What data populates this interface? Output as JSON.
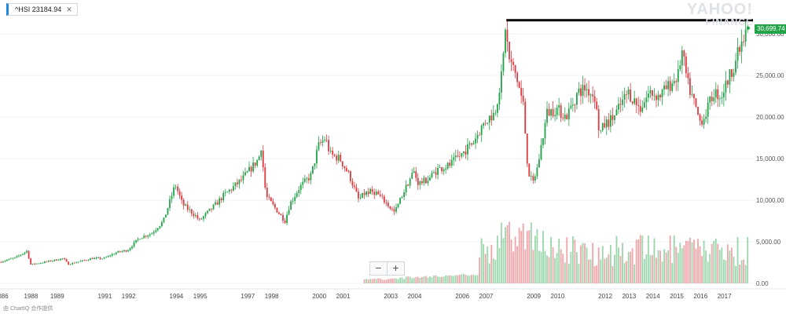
{
  "ticker": {
    "label": "^HSI 23184.94",
    "close_symbol": "✕",
    "accent": "#1e88e5"
  },
  "watermark": {
    "line1": "YAHOO!",
    "line2": "FINANCE"
  },
  "zoom": {
    "minus": "−",
    "plus": "+"
  },
  "footer": {
    "text": "由 ChartIQ 合作提供"
  },
  "current_price": {
    "label": "30,699.74",
    "color": "#22a348"
  },
  "colors": {
    "up": "#22a348",
    "down": "#e0383e",
    "resistance_line": "#000000",
    "grid": "#eef1f4"
  },
  "chart_data": {
    "type": "candlestick",
    "series_name": "^HSI",
    "x_range": [
      1986.6,
      2018.2
    ],
    "ylim": [
      0,
      32000
    ],
    "y_ticks": [
      0,
      5000,
      10000,
      15000,
      20000,
      25000,
      30000
    ],
    "y_tick_labels": [
      "0.00",
      "5,000.00",
      "10,000.00",
      "15,000.00",
      "20,000.00",
      "25,000.00",
      "30,000.00"
    ],
    "x_ticks": [
      {
        "year": 1986.6,
        "label": "l86"
      },
      {
        "year": 1987.9,
        "label": "1988"
      },
      {
        "year": 1989.0,
        "label": "1989"
      },
      {
        "year": 1991.0,
        "label": "1991"
      },
      {
        "year": 1992.0,
        "label": "1992"
      },
      {
        "year": 1994.0,
        "label": "1994"
      },
      {
        "year": 1995.0,
        "label": "1995"
      },
      {
        "year": 1997.0,
        "label": "1997"
      },
      {
        "year": 1998.0,
        "label": "1998"
      },
      {
        "year": 2000.0,
        "label": "2000"
      },
      {
        "year": 2001.0,
        "label": "2001"
      },
      {
        "year": 2003.0,
        "label": "2003"
      },
      {
        "year": 2004.0,
        "label": "2004"
      },
      {
        "year": 2006.0,
        "label": "2006"
      },
      {
        "year": 2007.0,
        "label": "2007"
      },
      {
        "year": 2009.0,
        "label": "2009"
      },
      {
        "year": 2010.0,
        "label": "2010"
      },
      {
        "year": 2012.0,
        "label": "2012"
      },
      {
        "year": 2013.0,
        "label": "2013"
      },
      {
        "year": 2014.0,
        "label": "2014"
      },
      {
        "year": 2015.0,
        "label": "2015"
      },
      {
        "year": 2016.0,
        "label": "2016"
      },
      {
        "year": 2017.0,
        "label": "2017"
      }
    ],
    "price_path": [
      [
        1986.6,
        2550
      ],
      [
        1987.3,
        3100
      ],
      [
        1987.8,
        3950
      ],
      [
        1987.9,
        2250
      ],
      [
        1988.5,
        2550
      ],
      [
        1989.3,
        3000
      ],
      [
        1989.5,
        2300
      ],
      [
        1990.5,
        3000
      ],
      [
        1991.0,
        3000
      ],
      [
        1991.5,
        3700
      ],
      [
        1992.0,
        4000
      ],
      [
        1992.5,
        5500
      ],
      [
        1993.0,
        6000
      ],
      [
        1993.5,
        7500
      ],
      [
        1994.0,
        11900
      ],
      [
        1994.3,
        9500
      ],
      [
        1994.9,
        8000
      ],
      [
        1995.0,
        7500
      ],
      [
        1995.7,
        9500
      ],
      [
        1996.0,
        10500
      ],
      [
        1996.8,
        12500
      ],
      [
        1997.5,
        15000
      ],
      [
        1997.6,
        16500
      ],
      [
        1997.8,
        10500
      ],
      [
        1998.2,
        9000
      ],
      [
        1998.6,
        7500
      ],
      [
        1998.8,
        9500
      ],
      [
        1999.2,
        11500
      ],
      [
        1999.7,
        13000
      ],
      [
        2000.0,
        16500
      ],
      [
        2000.3,
        17500
      ],
      [
        2000.5,
        15500
      ],
      [
        2000.9,
        15000
      ],
      [
        2001.3,
        13000
      ],
      [
        2001.7,
        10000
      ],
      [
        2002.0,
        11000
      ],
      [
        2002.4,
        11000
      ],
      [
        2002.9,
        9500
      ],
      [
        2003.2,
        8500
      ],
      [
        2003.5,
        10500
      ],
      [
        2003.8,
        12300
      ],
      [
        2004.0,
        13500
      ],
      [
        2004.2,
        12000
      ],
      [
        2004.6,
        12500
      ],
      [
        2005.0,
        13700
      ],
      [
        2005.5,
        14200
      ],
      [
        2006.0,
        15500
      ],
      [
        2006.5,
        17000
      ],
      [
        2007.0,
        19500
      ],
      [
        2007.4,
        20500
      ],
      [
        2007.7,
        25000
      ],
      [
        2007.8,
        28500
      ],
      [
        2007.85,
        31000
      ],
      [
        2008.0,
        27000
      ],
      [
        2008.3,
        25000
      ],
      [
        2008.6,
        21500
      ],
      [
        2008.8,
        13500
      ],
      [
        2009.0,
        12000
      ],
      [
        2009.2,
        14000
      ],
      [
        2009.6,
        20500
      ],
      [
        2010.0,
        21000
      ],
      [
        2010.4,
        20000
      ],
      [
        2010.9,
        23000
      ],
      [
        2011.2,
        23500
      ],
      [
        2011.6,
        22500
      ],
      [
        2011.8,
        18000
      ],
      [
        2012.0,
        19000
      ],
      [
        2012.4,
        20000
      ],
      [
        2012.8,
        22000
      ],
      [
        2013.0,
        23000
      ],
      [
        2013.5,
        21000
      ],
      [
        2013.9,
        23000
      ],
      [
        2014.3,
        22500
      ],
      [
        2014.8,
        24000
      ],
      [
        2015.1,
        25000
      ],
      [
        2015.25,
        28000
      ],
      [
        2015.5,
        24000
      ],
      [
        2015.8,
        21500
      ],
      [
        2016.0,
        19500
      ],
      [
        2016.2,
        20000
      ],
      [
        2016.6,
        23000
      ],
      [
        2016.9,
        22500
      ],
      [
        2017.2,
        24500
      ],
      [
        2017.6,
        27500
      ],
      [
        2017.9,
        29500
      ],
      [
        2018.0,
        30700
      ]
    ],
    "volume_start_year": 2001.8,
    "resistance_line": {
      "from_year": 2007.85,
      "to_year": 2018.2,
      "value": 31650
    },
    "last_value": 30699.74
  }
}
